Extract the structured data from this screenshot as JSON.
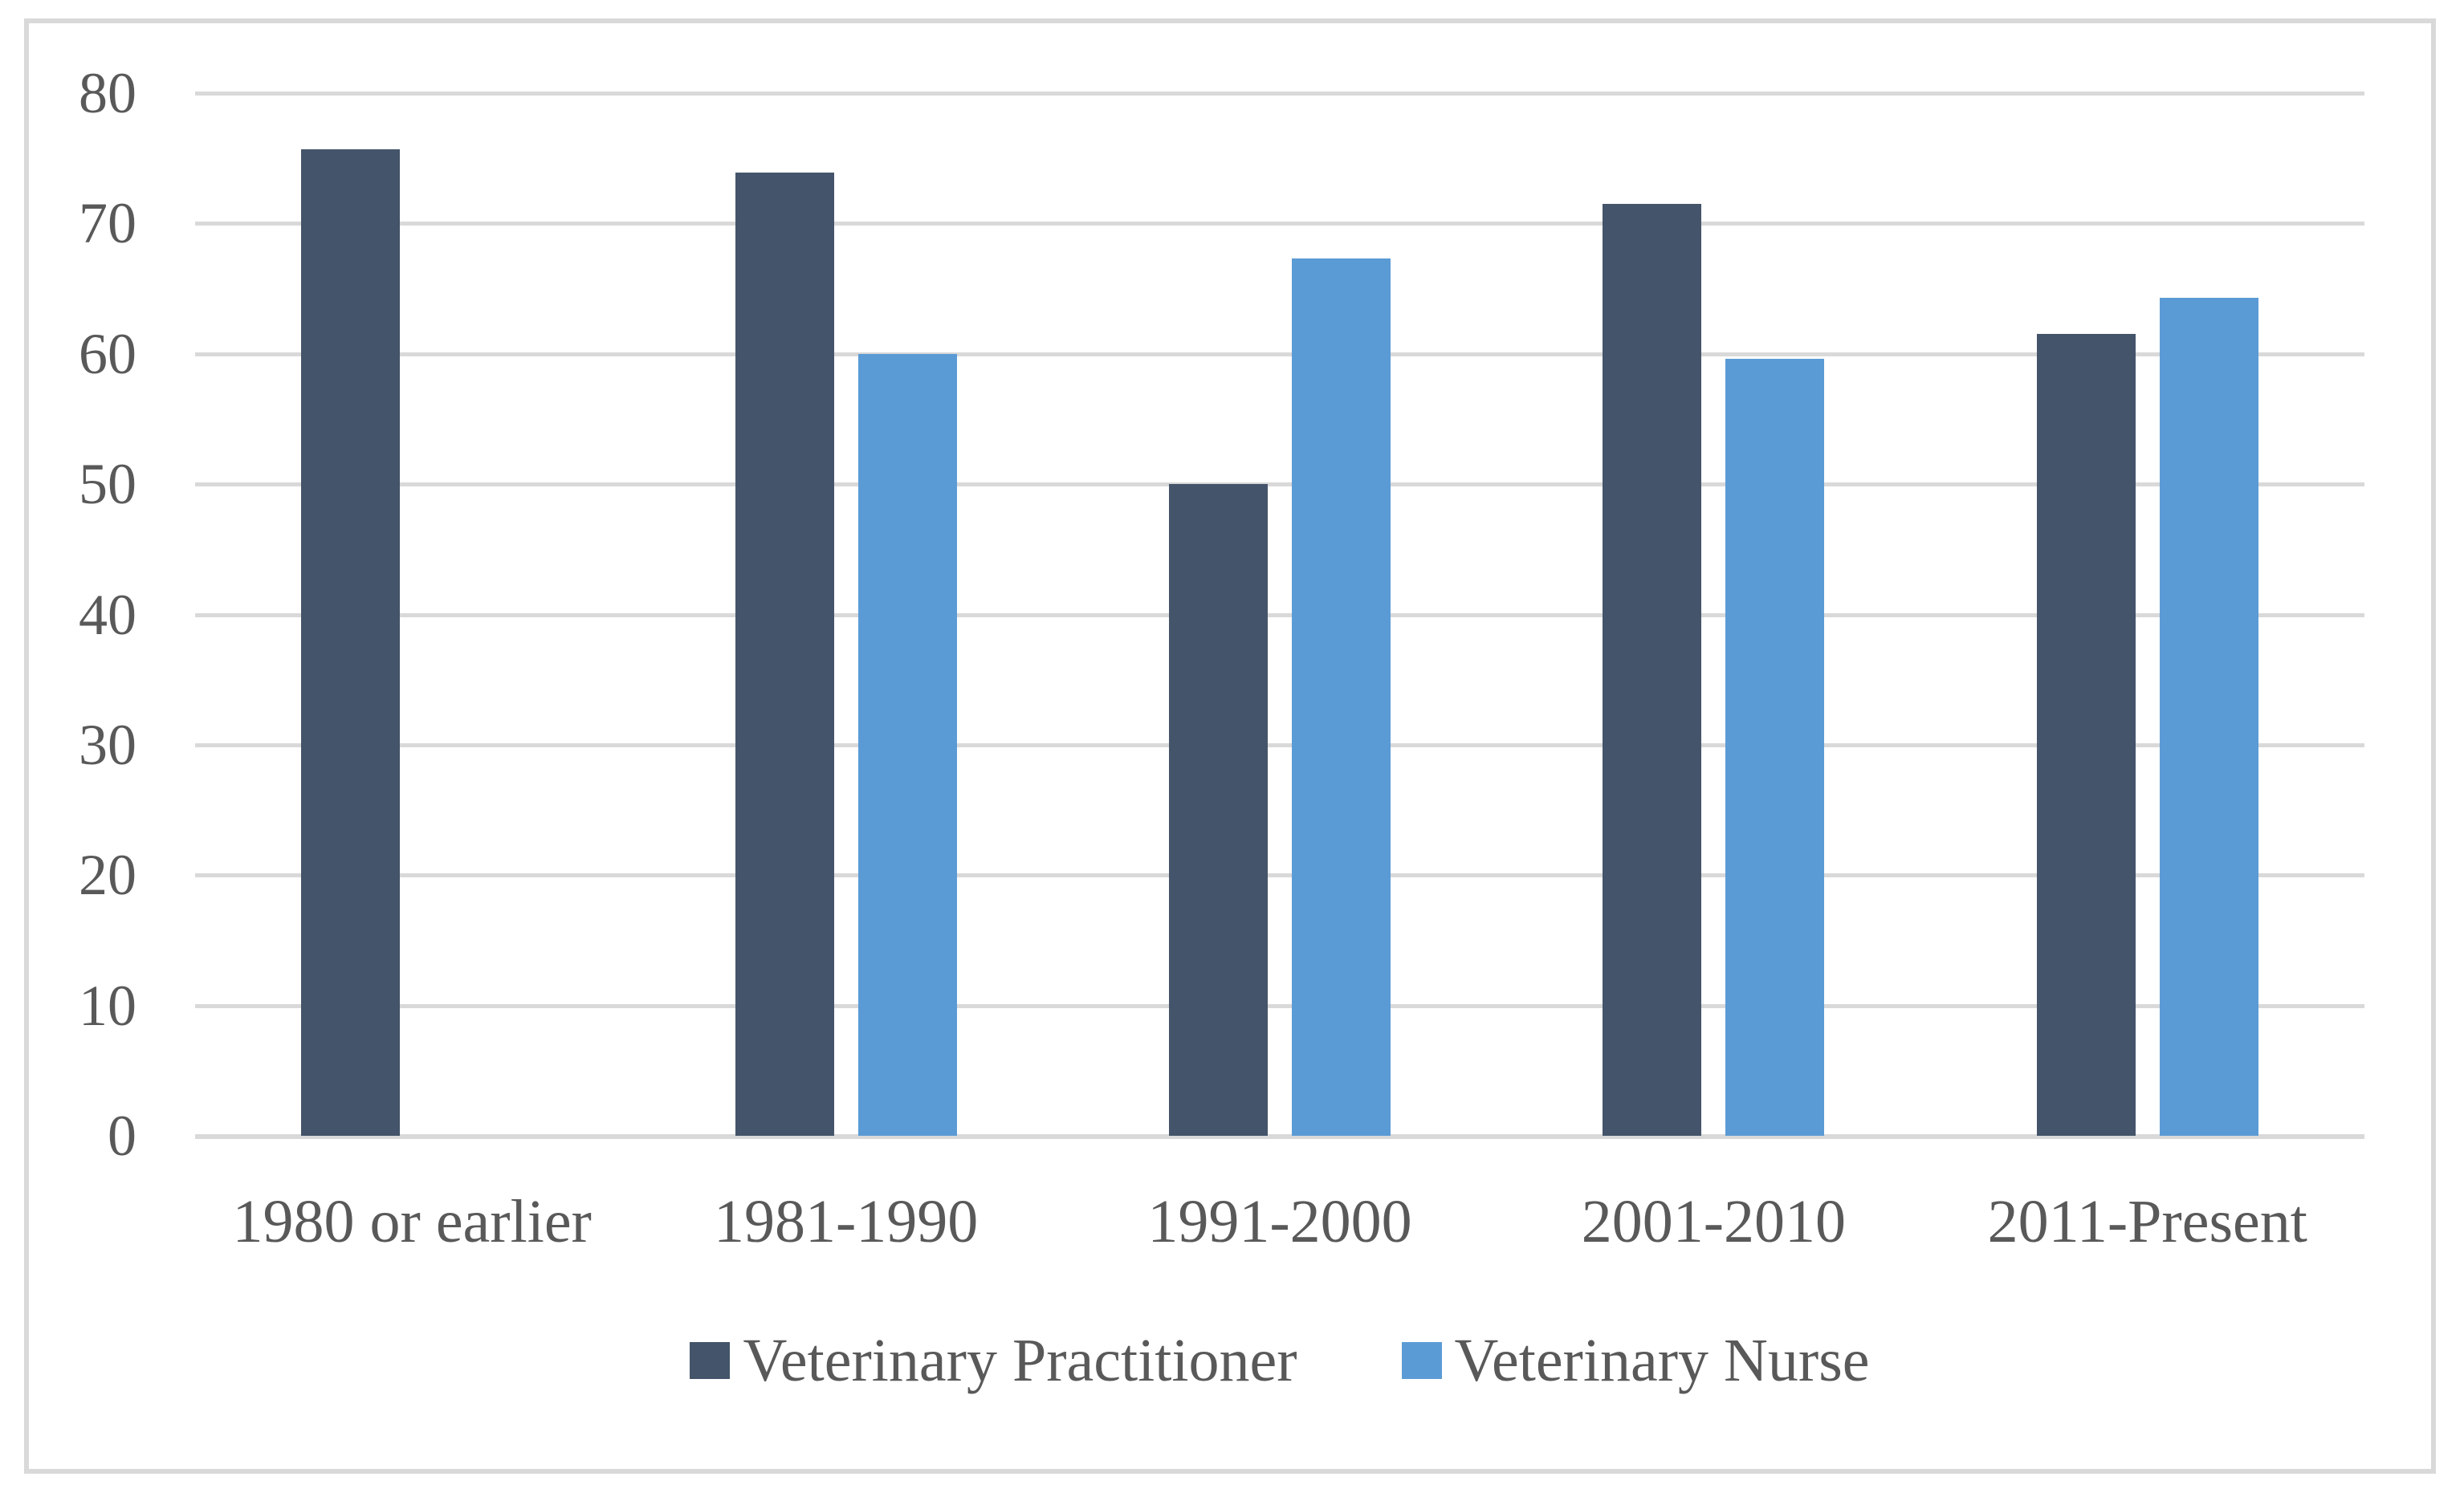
{
  "chart_data": {
    "type": "bar",
    "title": "",
    "xlabel": "",
    "ylabel": "",
    "categories": [
      "1980 or earlier",
      "1981-1990",
      "1991-2000",
      "2001-2010",
      "2011-Present"
    ],
    "series": [
      {
        "name": "Veterinary Practitioner",
        "color": "#44546A",
        "values": [
          75.7,
          73.9,
          50.0,
          71.5,
          61.5
        ]
      },
      {
        "name": "Veterinary Nurse",
        "color": "#5B9BD5",
        "values": [
          null,
          60.0,
          67.3,
          59.6,
          64.3
        ]
      }
    ],
    "ylim": [
      0,
      80
    ],
    "yticks": [
      0,
      10,
      20,
      30,
      40,
      50,
      60,
      70,
      80
    ],
    "grid": "horizontal-only",
    "legend_position": "bottom",
    "gridline_color": "#D9D9D9",
    "frame_color": "#D9D9D9",
    "axis_text_color": "#595959"
  }
}
